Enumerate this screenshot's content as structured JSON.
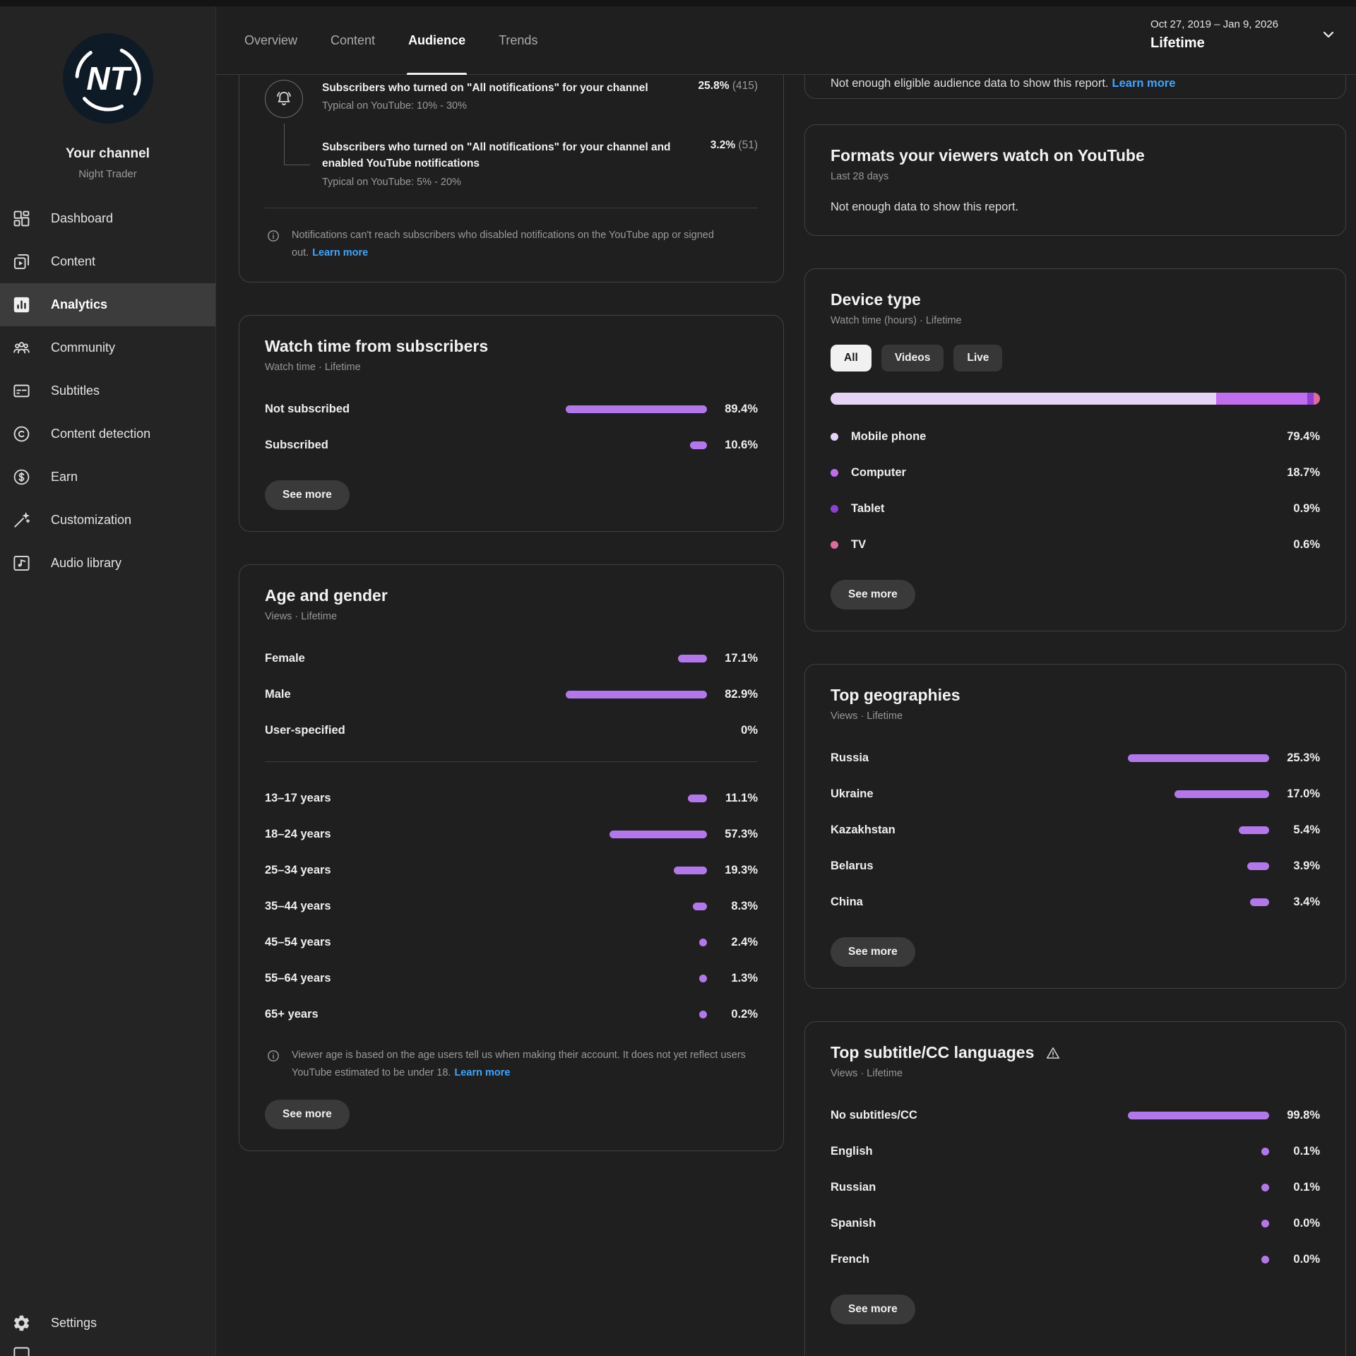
{
  "colors": {
    "accent": "#b377ec",
    "accent_light": "#e6d4f6",
    "link": "#3ea6ff"
  },
  "header": {
    "tabs": [
      {
        "label": "Overview",
        "active": false
      },
      {
        "label": "Content",
        "active": false
      },
      {
        "label": "Audience",
        "active": true
      },
      {
        "label": "Trends",
        "active": false
      }
    ],
    "date_range": "Oct 27, 2019 – Jan 9, 2026",
    "date_preset": "Lifetime"
  },
  "sidebar": {
    "channel_title": "Your channel",
    "channel_name": "Night Trader",
    "avatar_initials": "NT",
    "items": [
      {
        "label": "Dashboard",
        "icon": "dashboard-icon",
        "active": false
      },
      {
        "label": "Content",
        "icon": "content-icon",
        "active": false
      },
      {
        "label": "Analytics",
        "icon": "analytics-icon",
        "active": true
      },
      {
        "label": "Community",
        "icon": "community-icon",
        "active": false
      },
      {
        "label": "Subtitles",
        "icon": "subtitles-icon",
        "active": false
      },
      {
        "label": "Content detection",
        "icon": "content-detection-icon",
        "active": false
      },
      {
        "label": "Earn",
        "icon": "earn-icon",
        "active": false
      },
      {
        "label": "Customization",
        "icon": "customization-icon",
        "active": false
      },
      {
        "label": "Audio library",
        "icon": "audio-library-icon",
        "active": false
      }
    ],
    "footer_items": [
      {
        "label": "Settings",
        "icon": "settings-icon",
        "active": false
      }
    ]
  },
  "notifications_card": {
    "rows": [
      {
        "title": "Subscribers who turned on \"All notifications\" for your channel",
        "value": "25.8%",
        "count": "(415)",
        "typical": "Typical on YouTube: 10% - 30%"
      },
      {
        "title": "Subscribers who turned on \"All notifications\" for your channel and enabled YouTube notifications",
        "value": "3.2%",
        "count": "(51)",
        "typical": "Typical on YouTube: 5% - 20%"
      }
    ],
    "note": "Notifications can't reach subscribers who disabled notifications on the YouTube app or signed out.",
    "note_link": "Learn more"
  },
  "watch_time_card": {
    "title": "Watch time from subscribers",
    "subtitle": "Watch time · Lifetime",
    "rows": [
      {
        "label": "Not subscribed",
        "pct": 89.4,
        "value": "89.4%"
      },
      {
        "label": "Subscribed",
        "pct": 10.6,
        "value": "10.6%"
      }
    ],
    "see_more": "See more"
  },
  "age_gender_card": {
    "title": "Age and gender",
    "subtitle": "Views · Lifetime",
    "gender_rows": [
      {
        "label": "Female",
        "pct": 17.1,
        "value": "17.1%"
      },
      {
        "label": "Male",
        "pct": 82.9,
        "value": "82.9%"
      },
      {
        "label": "User-specified",
        "pct": 0,
        "value": "0%"
      }
    ],
    "age_rows": [
      {
        "label": "13–17 years",
        "pct": 11.1,
        "value": "11.1%"
      },
      {
        "label": "18–24 years",
        "pct": 57.3,
        "value": "57.3%"
      },
      {
        "label": "25–34 years",
        "pct": 19.3,
        "value": "19.3%"
      },
      {
        "label": "35–44 years",
        "pct": 8.3,
        "value": "8.3%"
      },
      {
        "label": "45–54 years",
        "pct": 2.4,
        "value": "2.4%"
      },
      {
        "label": "55–64 years",
        "pct": 1.3,
        "value": "1.3%"
      },
      {
        "label": "65+ years",
        "pct": 0.2,
        "value": "0.2%"
      }
    ],
    "note": "Viewer age is based on the age users tell us when making their account. It does not yet reflect users YouTube estimated to be under 18.",
    "note_link": "Learn more",
    "see_more": "See more"
  },
  "eligible_card": {
    "message": "Not enough eligible audience data to show this report.",
    "link": "Learn more"
  },
  "formats_card": {
    "title": "Formats your viewers watch on YouTube",
    "subtitle": "Last 28 days",
    "message": "Not enough data to show this report."
  },
  "device_type_card": {
    "title": "Device type",
    "subtitle": "Watch time (hours) · Lifetime",
    "chips": [
      {
        "label": "All",
        "active": true
      },
      {
        "label": "Videos",
        "active": false
      },
      {
        "label": "Live",
        "active": false
      }
    ],
    "rows": [
      {
        "label": "Mobile phone",
        "pct": 79.4,
        "value": "79.4%",
        "color": "#e6d4f6"
      },
      {
        "label": "Computer",
        "pct": 18.7,
        "value": "18.7%",
        "color": "#c06df0"
      },
      {
        "label": "Tablet",
        "pct": 0.9,
        "value": "0.9%",
        "color": "#8e3fd4"
      },
      {
        "label": "TV",
        "pct": 0.6,
        "value": "0.6%",
        "color": "#e0699e"
      }
    ],
    "see_more": "See more"
  },
  "geographies_card": {
    "title": "Top geographies",
    "subtitle": "Views · Lifetime",
    "rows": [
      {
        "label": "Russia",
        "pct": 25.3,
        "value": "25.3%"
      },
      {
        "label": "Ukraine",
        "pct": 17.0,
        "value": "17.0%"
      },
      {
        "label": "Kazakhstan",
        "pct": 5.4,
        "value": "5.4%"
      },
      {
        "label": "Belarus",
        "pct": 3.9,
        "value": "3.9%"
      },
      {
        "label": "China",
        "pct": 3.4,
        "value": "3.4%"
      }
    ],
    "see_more": "See more"
  },
  "languages_card": {
    "title": "Top subtitle/CC languages",
    "subtitle": "Views · Lifetime",
    "rows": [
      {
        "label": "No subtitles/CC",
        "pct": 99.8,
        "value": "99.8%"
      },
      {
        "label": "English",
        "pct": 0.1,
        "value": "0.1%"
      },
      {
        "label": "Russian",
        "pct": 0.1,
        "value": "0.1%"
      },
      {
        "label": "Spanish",
        "pct": 0.0,
        "value": "0.0%"
      },
      {
        "label": "French",
        "pct": 0.0,
        "value": "0.0%"
      }
    ],
    "see_more": "See more"
  }
}
